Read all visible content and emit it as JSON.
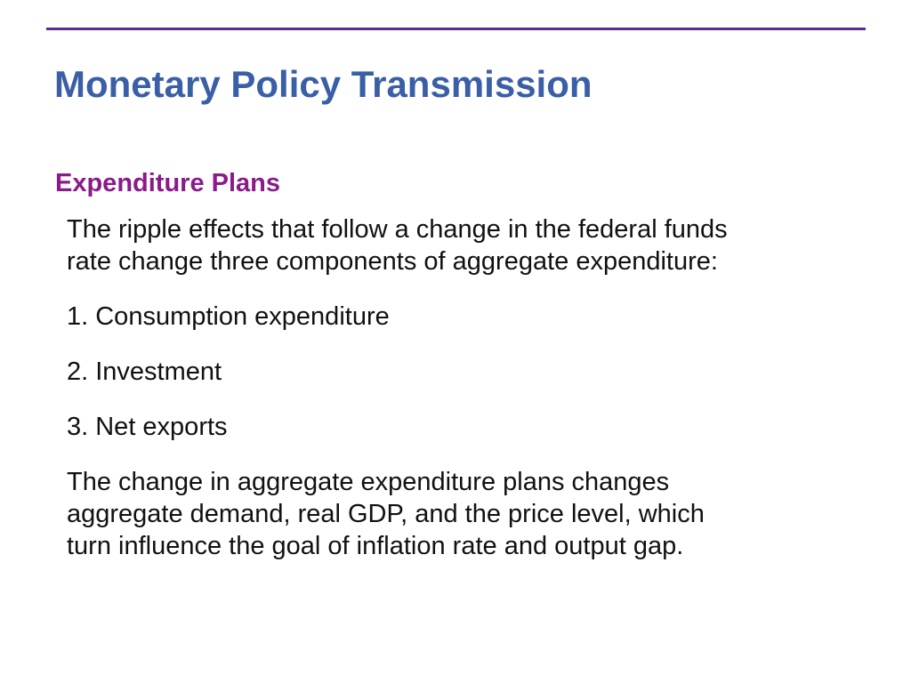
{
  "slide": {
    "title": "Monetary Policy Transmission",
    "subheading": "Expenditure Plans",
    "intro_line1": "The ripple effects that follow a change in the federal funds",
    "intro_line2": "rate change three components of aggregate expenditure:",
    "item1": "1. Consumption expenditure",
    "item2": "2. Investment",
    "item3": "3. Net exports",
    "closing_line1": "The change in aggregate expenditure plans changes",
    "closing_line2": "aggregate demand, real GDP, and the price level, which",
    "closing_line3": "turn influence the goal of inflation rate and output gap."
  },
  "colors": {
    "rule": "#5c2d91",
    "title": "#3a5fa6",
    "subheading": "#8b1a8b",
    "body": "#111111"
  }
}
